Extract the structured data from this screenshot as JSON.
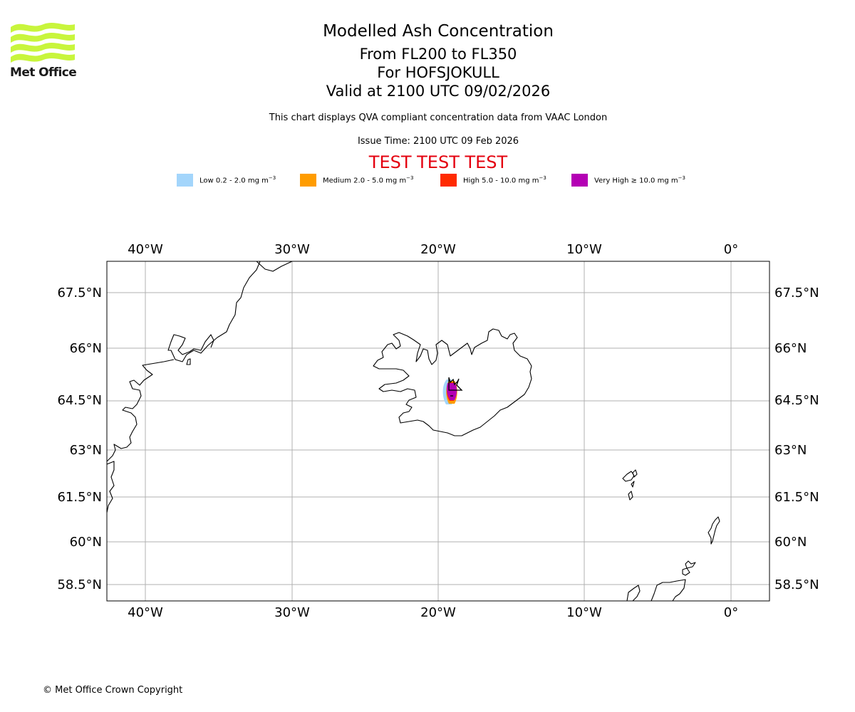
{
  "header": {
    "logo_text": "Met Office",
    "title": "Modelled Ash Concentration",
    "levels": "From FL200 to FL350",
    "volcano": "For HOFSJOKULL",
    "valid": "Valid at 2100 UTC 09/02/2026",
    "compliance": "This chart displays QVA compliant concentration data from VAAC London",
    "issue": "Issue Time: 2100 UTC 09 Feb 2026",
    "test_banner": "TEST TEST TEST"
  },
  "legend": [
    {
      "label": "Low 0.2 - 2.0 mg m",
      "unit_exp": "−3",
      "color": "#a3d5fb"
    },
    {
      "label": "Medium 2.0 - 5.0 mg m",
      "unit_exp": "−3",
      "color": "#ff9c00"
    },
    {
      "label": "High 5.0 - 10.0 mg m",
      "unit_exp": "−3",
      "color": "#ff2a00"
    },
    {
      "label": "Very High  ≥  10.0 mg m",
      "unit_exp": "−3",
      "color": "#b400b4"
    }
  ],
  "map": {
    "lon_labels": [
      "40°W",
      "30°W",
      "20°W",
      "10°W",
      "0°"
    ],
    "lat_labels": [
      "67.5°N",
      "66°N",
      "64.5°N",
      "63°N",
      "61.5°N",
      "60°N",
      "58.5°N"
    ],
    "logo_color": "#c8f53c",
    "grid_color": "#b0b0b0",
    "ash_plume": {
      "volcano": "HOFSJOKULL",
      "lat": 64.8,
      "lon": -18.9
    }
  },
  "footer": {
    "copyright": "© Met Office Crown Copyright"
  }
}
